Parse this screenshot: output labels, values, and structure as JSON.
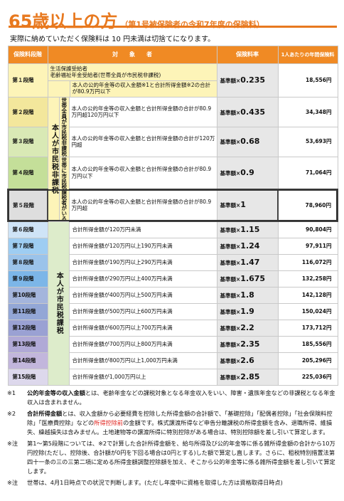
{
  "title": {
    "main": "65歳以上の方",
    "sub": "（第1号被保険者の令和7年度の保険料）"
  },
  "intro": "実際に納めていただく保険料は 10 円未満は切捨てになります。",
  "headers": {
    "stage": "保険料段階",
    "target": "対　　象　　者",
    "rate": "保険料率",
    "annual": "1人あたりの年間保険料"
  },
  "groups": {
    "nontax_household": "本人が市民税非課税",
    "household_nontax": "世帯全員が市民税非課税",
    "household_taxed": "世帯に市民税課税者がいる",
    "taxed_self": "本人が市民税課税"
  },
  "rows": [
    {
      "stage": "第１段階",
      "num": "1",
      "suffix": "段階",
      "desc": "生活保護受給者\n老齢福祉年金受給者(世帯全員が市民税非課税)\n本人の公的年金等の収入金額※1と合計所得金額※2の合計が80.9万円以下",
      "desc_a": "生活保護受給者",
      "desc_b": "老齢福祉年金受給者(世帯全員が市民税非課税)",
      "desc_c": "本人の公的年金等の収入金額※1と合計所得金額※2の合計が80.9万円以下",
      "rate_label": "基準額×",
      "rate": "0.235",
      "amount": "18,556円"
    },
    {
      "stage": "第２段階",
      "num": "2",
      "suffix": "段階",
      "desc": "本人の公的年金等の収入金額と合計所得金額の合計が80.9万円超120万円以下",
      "rate_label": "基準額×",
      "rate": "0.435",
      "amount": "34,348円"
    },
    {
      "stage": "第３段階",
      "num": "3",
      "suffix": "段階",
      "desc": "本人の公的年金等の収入金額と合計所得金額の合計が120万円超",
      "rate_label": "基準額×",
      "rate": "0.68",
      "amount": "53,693円"
    },
    {
      "stage": "第４段階",
      "num": "4",
      "suffix": "段階",
      "desc": "本人の公的年金等の収入金額と合計所得金額の合計が80.9万円以下",
      "rate_label": "基準額×",
      "rate": "0.9",
      "amount": "71,064円"
    },
    {
      "stage": "第５段階",
      "num": "5",
      "suffix": "段階",
      "desc": "本人の公的年金等の収入金額と合計所得金額の合計が80.9万円超",
      "rate_label": "基準額×",
      "rate": "1",
      "amount": "78,960円"
    },
    {
      "stage": "第６段階",
      "num": "6",
      "suffix": "段階",
      "desc": "合計所得金額が120万円未満",
      "rate_label": "基準額×",
      "rate": "1.15",
      "amount": "90,804円"
    },
    {
      "stage": "第７段階",
      "num": "7",
      "suffix": "段階",
      "desc": "合計所得金額が120万円以上190万円未満",
      "rate_label": "基準額×",
      "rate": "1.24",
      "amount": "97,911円"
    },
    {
      "stage": "第８段階",
      "num": "8",
      "suffix": "段階",
      "desc": "合計所得金額が190万円以上290万円未満",
      "rate_label": "基準額×",
      "rate": "1.47",
      "amount": "116,072円"
    },
    {
      "stage": "第９段階",
      "num": "9",
      "suffix": "段階",
      "desc": "合計所得金額が290万円以上400万円未満",
      "rate_label": "基準額×",
      "rate": "1.675",
      "amount": "132,258円"
    },
    {
      "stage": "第10段階",
      "num": "10",
      "suffix": "段階",
      "desc": "合計所得金額が400万円以上500万円未満",
      "rate_label": "基準額×",
      "rate": "1.8",
      "amount": "142,128円"
    },
    {
      "stage": "第11段階",
      "num": "11",
      "suffix": "段階",
      "desc": "合計所得金額が500万円以上600万円未満",
      "rate_label": "基準額×",
      "rate": "1.9",
      "amount": "150,024円"
    },
    {
      "stage": "第12段階",
      "num": "12",
      "suffix": "段階",
      "desc": "合計所得金額が600万円以上700万円未満",
      "rate_label": "基準額×",
      "rate": "2.2",
      "amount": "173,712円"
    },
    {
      "stage": "第13段階",
      "num": "13",
      "suffix": "段階",
      "desc": "合計所得金額が700万円以上800万円未満",
      "rate_label": "基準額×",
      "rate": "2.35",
      "amount": "185,556円"
    },
    {
      "stage": "第14段階",
      "num": "14",
      "suffix": "段階",
      "desc": "合計所得金額が800万円以上1,000万円未満",
      "rate_label": "基準額×",
      "rate": "2.6",
      "amount": "205,296円"
    },
    {
      "stage": "第15段階",
      "num": "15",
      "suffix": "段階",
      "desc": "合計所得金額が1,000万円以上",
      "rate_label": "基準額×",
      "rate": "2.85",
      "amount": "225,036円"
    }
  ],
  "notes": [
    {
      "mark": "※1",
      "term": "公的年金等の収入金額",
      "text": "とは、老齢年金などの課税対象となる年金収入をいい、障害・遺族年金などの非課税となる年金収入は含まれません。"
    },
    {
      "mark": "※2",
      "term": "合計所得金額",
      "text_a": "とは、収入金額から必要経費を控除した所得金額の合計額で、「基礎控除」「配偶者控除」「社会保険料控除」「医療費控除」などの",
      "red": "所得控除前",
      "text_b": "の金額です。株式譲渡所得など申告分離課税の所得金額を含み、退職所得、維損失、繰越損失は含みません。土地建物等の譲渡所得に特別控除がある場合は、特別控除額を差し引いて算定します。"
    },
    {
      "mark": "※注",
      "text": "第1～第5段階については、※2で計算した合計所得金額を、給与所得及び公的年金等に係る雑所得金額の合計から10万円控除(ただし、控除後、合計額が0円を下回る場合は0円とする)した額で算定し直します。さらに、租税特別措置法第四十一条の三の三第二項に定める所得金額調整控除額を加え、そこから公的年金等に係る雑所得金額を差し引いて算定します。"
    },
    {
      "mark": "※注",
      "text": "世帯は、4月1日時点での状況で判断します。(ただし年度中に資格を取得した方は資格取得日時点)"
    }
  ],
  "colors": {
    "accent": "#e8791f",
    "header": "#f08a24",
    "red": "#e0201b"
  }
}
